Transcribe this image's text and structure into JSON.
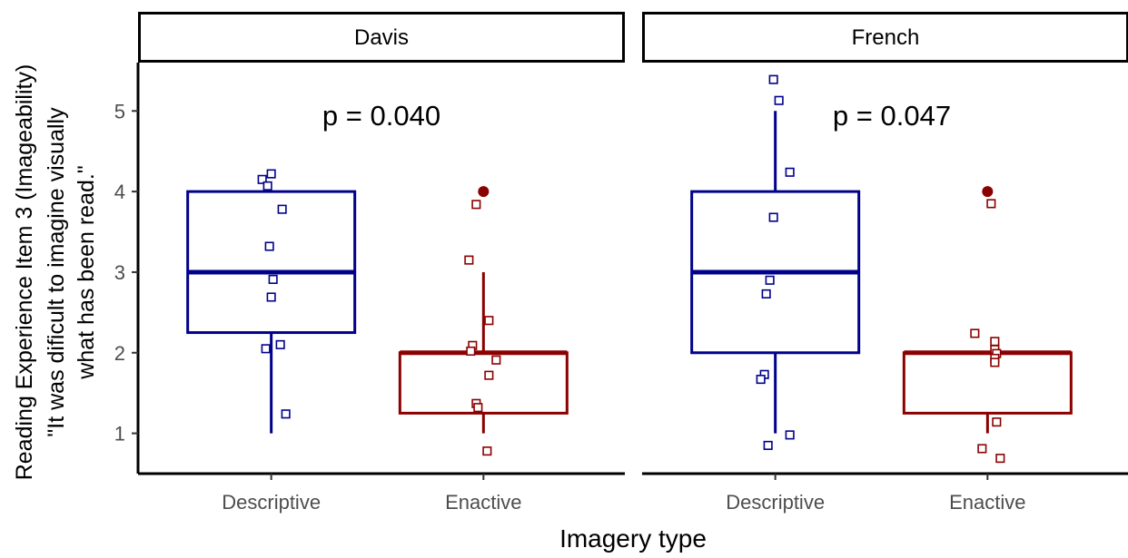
{
  "chart_data": {
    "type": "box",
    "xlabel": "Imagery type",
    "ylabel_lines": [
      "Reading Experience Item 3 (Imageability)",
      "\"It was dificult to imagine visually",
      "what has been read.\""
    ],
    "y_ticks": [
      1,
      2,
      3,
      4,
      5
    ],
    "ylim": [
      0.5,
      5.6
    ],
    "categories": [
      "Descriptive",
      "Enactive"
    ],
    "colors": {
      "Descriptive": "#00008b",
      "Enactive": "#8b0000"
    },
    "panels": [
      {
        "name": "Davis",
        "annotation": "p = 0.040",
        "boxes": [
          {
            "category": "Descriptive",
            "q1": 2.25,
            "median": 3,
            "q3": 4,
            "whisker_low": 1,
            "whisker_high": 4,
            "outliers": [],
            "points": [
              [
                -0.05,
                4.15
              ],
              [
                0.0,
                4.22
              ],
              [
                -0.02,
                4.07
              ],
              [
                0.06,
                3.78
              ],
              [
                -0.01,
                3.32
              ],
              [
                0.01,
                2.91
              ],
              [
                0.0,
                2.69
              ],
              [
                -0.03,
                2.05
              ],
              [
                0.05,
                2.1
              ],
              [
                0.08,
                1.24
              ]
            ]
          },
          {
            "category": "Enactive",
            "q1": 1.25,
            "median": 2,
            "q3": 2,
            "whisker_low": 1,
            "whisker_high": 3,
            "outliers": [
              4
            ],
            "points": [
              [
                -0.04,
                3.84
              ],
              [
                -0.08,
                3.15
              ],
              [
                0.03,
                2.4
              ],
              [
                -0.06,
                2.09
              ],
              [
                -0.07,
                2.02
              ],
              [
                0.07,
                1.91
              ],
              [
                0.03,
                1.72
              ],
              [
                -0.04,
                1.37
              ],
              [
                -0.03,
                1.32
              ],
              [
                0.02,
                0.78
              ]
            ]
          }
        ]
      },
      {
        "name": "French",
        "annotation": "p = 0.047",
        "boxes": [
          {
            "category": "Descriptive",
            "q1": 2,
            "median": 3,
            "q3": 4,
            "whisker_low": 1,
            "whisker_high": 5,
            "outliers": [],
            "points": [
              [
                -0.01,
                5.39
              ],
              [
                0.02,
                5.13
              ],
              [
                0.08,
                4.24
              ],
              [
                -0.01,
                3.68
              ],
              [
                -0.03,
                2.9
              ],
              [
                -0.05,
                2.73
              ],
              [
                -0.06,
                1.73
              ],
              [
                -0.08,
                1.67
              ],
              [
                0.08,
                0.98
              ],
              [
                -0.04,
                0.85
              ]
            ]
          },
          {
            "category": "Enactive",
            "q1": 1.25,
            "median": 2,
            "q3": 2,
            "whisker_low": 1,
            "whisker_high": 2,
            "outliers": [
              4
            ],
            "points": [
              [
                0.02,
                3.85
              ],
              [
                -0.07,
                2.24
              ],
              [
                0.04,
                2.14
              ],
              [
                0.04,
                2.04
              ],
              [
                0.05,
                1.99
              ],
              [
                0.04,
                1.93
              ],
              [
                0.04,
                1.88
              ],
              [
                0.05,
                1.14
              ],
              [
                -0.03,
                0.81
              ],
              [
                0.07,
                0.69
              ]
            ]
          }
        ]
      }
    ]
  }
}
